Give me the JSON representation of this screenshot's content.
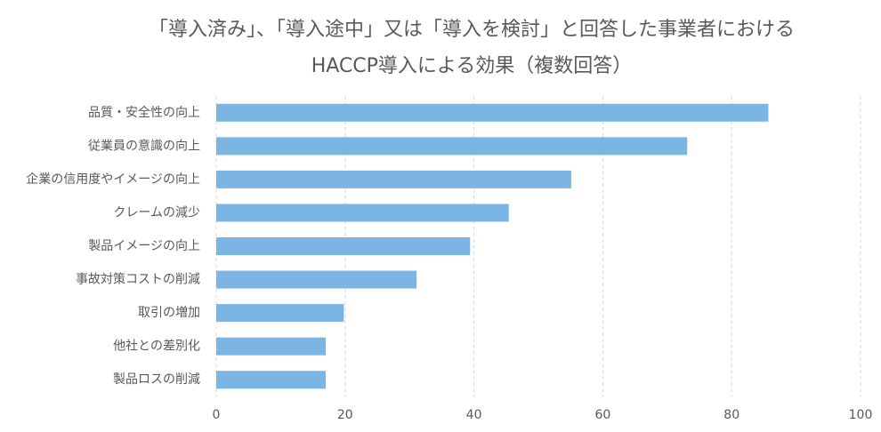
{
  "chart_data": {
    "type": "barh",
    "title": [
      "「導入済み」、「導入途中」又は「導入を検討」と回答した事業者における",
      "HACCP導入による効果（複数回答）"
    ],
    "categories": [
      "品質・安全性の向上",
      "従業員の意識の向上",
      "企業の信用度やイメージの向上",
      "クレームの減少",
      "製品イメージの向上",
      "事故対策コストの削減",
      "取引の増加",
      "他社との差別化",
      "製品ロスの削減"
    ],
    "values": [
      85.7,
      73.1,
      55.1,
      45.4,
      39.4,
      31.1,
      19.8,
      17.0,
      17.0
    ],
    "color": "#7ab5e3",
    "xlim": [
      0,
      100
    ],
    "xticks": [
      0,
      20,
      40,
      60,
      80,
      100
    ],
    "grid": true
  }
}
